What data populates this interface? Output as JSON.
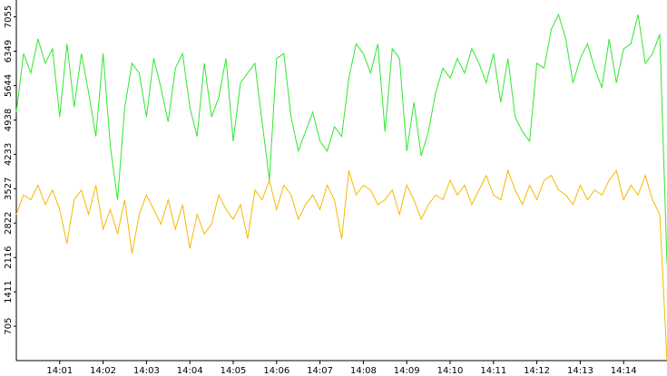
{
  "chart_data": {
    "type": "line",
    "categories": [
      null,
      null,
      null,
      null,
      null,
      null,
      "14:01",
      null,
      null,
      null,
      null,
      null,
      "14:02",
      null,
      null,
      null,
      null,
      null,
      "14:03",
      null,
      null,
      null,
      null,
      null,
      "14:04",
      null,
      null,
      null,
      null,
      null,
      "14:05",
      null,
      null,
      null,
      null,
      null,
      "14:06",
      null,
      null,
      null,
      null,
      null,
      "14:07",
      null,
      null,
      null,
      null,
      null,
      "14:08",
      null,
      null,
      null,
      null,
      null,
      "14:09",
      null,
      null,
      null,
      null,
      null,
      "14:10",
      null,
      null,
      null,
      null,
      null,
      "14:11",
      null,
      null,
      null,
      null,
      null,
      "14:12",
      null,
      null,
      null,
      null,
      null,
      "14:13",
      null,
      null,
      null,
      null,
      null,
      "14:14",
      null,
      null,
      null,
      null,
      null,
      null
    ],
    "series": [
      {
        "color": "#2ee82e",
        "values": [
          5100,
          6300,
          5900,
          6600,
          6100,
          6400,
          5000,
          6500,
          5200,
          6300,
          5500,
          4600,
          6300,
          4400,
          3300,
          5200,
          6100,
          5900,
          5000,
          6200,
          5600,
          4900,
          6000,
          6300,
          5200,
          4600,
          6100,
          5000,
          5400,
          6200,
          4500,
          5700,
          5900,
          6100,
          4900,
          3700,
          6200,
          6300,
          5000,
          4300,
          4700,
          5100,
          4500,
          4300,
          4800,
          4600,
          5800,
          6500,
          6300,
          5900,
          6500,
          4700,
          6400,
          6200,
          4300,
          5300,
          4200,
          4700,
          5500,
          6000,
          5800,
          6200,
          5900,
          6400,
          6100,
          5700,
          6300,
          5300,
          6200,
          5000,
          4700,
          4500,
          6100,
          6000,
          6800,
          7100,
          6600,
          5700,
          6200,
          6500,
          6000,
          5600,
          6600,
          5700,
          6400,
          6500,
          7100,
          6100,
          6300,
          6700,
          2000
        ]
      },
      {
        "color": "#f5b800",
        "values": [
          3000,
          3400,
          3300,
          3600,
          3200,
          3500,
          3100,
          2400,
          3300,
          3500,
          3000,
          3600,
          2700,
          3100,
          2600,
          3300,
          2200,
          3000,
          3400,
          3100,
          2800,
          3300,
          2700,
          3200,
          2300,
          3000,
          2600,
          2800,
          3400,
          3100,
          2900,
          3200,
          2500,
          3500,
          3300,
          3700,
          3100,
          3600,
          3400,
          2900,
          3200,
          3400,
          3100,
          3600,
          3300,
          2500,
          3900,
          3400,
          3600,
          3500,
          3200,
          3300,
          3500,
          3000,
          3600,
          3300,
          2900,
          3200,
          3400,
          3300,
          3700,
          3400,
          3600,
          3200,
          3500,
          3800,
          3400,
          3300,
          3900,
          3500,
          3200,
          3600,
          3300,
          3700,
          3800,
          3500,
          3400,
          3200,
          3600,
          3300,
          3500,
          3400,
          3700,
          3900,
          3300,
          3600,
          3400,
          3800,
          3300,
          3000,
          0
        ]
      }
    ],
    "ylim": [
      0,
      7400
    ],
    "yticks": [
      705,
      1411,
      2116,
      2822,
      3527,
      4233,
      4938,
      5644,
      6349,
      7055
    ],
    "grid": false
  }
}
